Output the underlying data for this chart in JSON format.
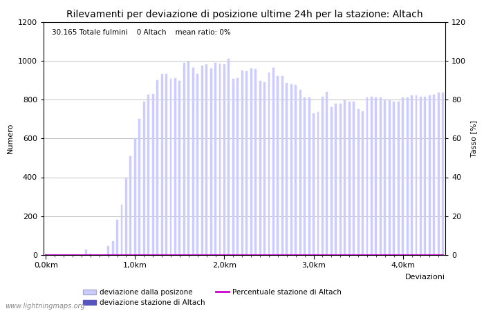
{
  "title": "Rilevamenti per deviazione di posizione ultime 24h per la stazione: Altach",
  "subtitle": "30.165 Totale fulmini    0 Altach    mean ratio: 0%",
  "xlabel": "Deviazioni",
  "ylabel_left": "Numero",
  "ylabel_right": "Tasso [%]",
  "watermark": "www.lightningmaps.org",
  "bar_color": "#ccccff",
  "station_bar_color": "#5555bb",
  "ratio_line_color": "#cc00cc",
  "ylim_left": [
    0,
    1200
  ],
  "ylim_right": [
    0,
    120
  ],
  "yticks_left": [
    0,
    200,
    400,
    600,
    800,
    1000,
    1200
  ],
  "yticks_right": [
    0,
    20,
    40,
    60,
    80,
    100,
    120
  ],
  "xtick_labels": [
    "0,0km",
    "1,0km",
    "2,0km",
    "3,0km",
    "4,0km"
  ],
  "xtick_positions": [
    0,
    20,
    40,
    60,
    80
  ],
  "num_bars": 90,
  "bar_values": [
    2,
    0,
    0,
    0,
    0,
    0,
    0,
    0,
    0,
    30,
    8,
    0,
    0,
    0,
    45,
    70,
    180,
    260,
    400,
    510,
    600,
    700,
    790,
    825,
    830,
    900,
    930,
    930,
    905,
    910,
    895,
    990,
    995,
    965,
    930,
    975,
    980,
    960,
    990,
    985,
    980,
    1010,
    905,
    910,
    950,
    945,
    960,
    955,
    895,
    890,
    940,
    965,
    920,
    920,
    885,
    880,
    875,
    850,
    810,
    810,
    730,
    735,
    815,
    840,
    760,
    780,
    780,
    795,
    790,
    790,
    750,
    740,
    810,
    815,
    810,
    810,
    800,
    795,
    790,
    790,
    810,
    810,
    820,
    820,
    815,
    815,
    820,
    825,
    835,
    835
  ],
  "station_bar_values": [
    0,
    0,
    0,
    0,
    0,
    0,
    0,
    0,
    0,
    0,
    0,
    0,
    0,
    0,
    0,
    0,
    0,
    0,
    0,
    0,
    0,
    0,
    0,
    0,
    0,
    0,
    0,
    0,
    0,
    0,
    0,
    0,
    0,
    0,
    0,
    0,
    0,
    0,
    0,
    0,
    0,
    0,
    0,
    0,
    0,
    0,
    0,
    0,
    0,
    0,
    0,
    0,
    0,
    0,
    0,
    0,
    0,
    0,
    0,
    0,
    0,
    0,
    0,
    0,
    0,
    0,
    0,
    0,
    0,
    0,
    0,
    0,
    0,
    0,
    0,
    0,
    0,
    0,
    0,
    0,
    0,
    0,
    0,
    0,
    0,
    0,
    0,
    0,
    0,
    0
  ],
  "ratio_values": [
    0,
    0,
    0,
    0,
    0,
    0,
    0,
    0,
    0,
    0,
    0,
    0,
    0,
    0,
    0,
    0,
    0,
    0,
    0,
    0,
    0,
    0,
    0,
    0,
    0,
    0,
    0,
    0,
    0,
    0,
    0,
    0,
    0,
    0,
    0,
    0,
    0,
    0,
    0,
    0,
    0,
    0,
    0,
    0,
    0,
    0,
    0,
    0,
    0,
    0,
    0,
    0,
    0,
    0,
    0,
    0,
    0,
    0,
    0,
    0,
    0,
    0,
    0,
    0,
    0,
    0,
    0,
    0,
    0,
    0,
    0,
    0,
    0,
    0,
    0,
    0,
    0,
    0,
    0,
    0,
    0,
    0,
    0,
    0,
    0,
    0,
    0,
    0,
    0,
    0
  ],
  "legend_entries": [
    {
      "label": "deviazione dalla posizone",
      "color": "#ccccff",
      "type": "bar"
    },
    {
      "label": "deviazione stazione di Altach",
      "color": "#5555bb",
      "type": "bar"
    },
    {
      "label": "Percentuale stazione di Altach",
      "color": "#cc00cc",
      "type": "line"
    }
  ],
  "background_color": "#ffffff",
  "grid_color": "#aaaaaa",
  "title_fontsize": 10,
  "axis_fontsize": 8,
  "tick_fontsize": 8
}
